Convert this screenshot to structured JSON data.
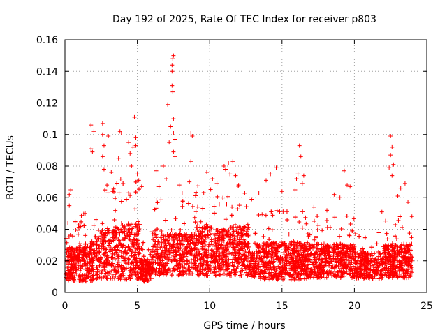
{
  "chart_data": {
    "type": "scatter",
    "title": "Day 192 of 2025, Rate Of TEC Index for receiver p803",
    "xlabel": "GPS time / hours",
    "ylabel": "ROTI / TECUs",
    "xlim": [
      0,
      25
    ],
    "ylim": [
      0,
      0.16
    ],
    "xticks": [
      0,
      5,
      10,
      15,
      20,
      25
    ],
    "yticks": [
      0,
      0.02,
      0.04,
      0.06,
      0.08,
      0.1,
      0.12,
      0.14,
      0.16
    ],
    "xtick_labels": [
      "0",
      "5",
      "10",
      "15",
      "20",
      "25"
    ],
    "ytick_labels": [
      "0",
      "0.02",
      "0.04",
      "0.06",
      "0.08",
      "0.1",
      "0.12",
      "0.14",
      "0.16"
    ],
    "grid": true,
    "marker": "+",
    "color": "#ff0000",
    "series": [
      {
        "name": "",
        "points": [
          [
            0.3,
            0.062
          ],
          [
            0.4,
            0.065
          ],
          [
            0.3,
            0.055
          ],
          [
            0.2,
            0.044
          ],
          [
            1.8,
            0.106
          ],
          [
            1.8,
            0.091
          ],
          [
            1.9,
            0.089
          ],
          [
            2.0,
            0.102
          ],
          [
            2.6,
            0.107
          ],
          [
            2.6,
            0.1
          ],
          [
            2.7,
            0.093
          ],
          [
            2.6,
            0.086
          ],
          [
            2.7,
            0.078
          ],
          [
            3.0,
            0.099
          ],
          [
            3.2,
            0.076
          ],
          [
            2.9,
            0.068
          ],
          [
            3.3,
            0.064
          ],
          [
            3.8,
            0.102
          ],
          [
            3.9,
            0.101
          ],
          [
            3.7,
            0.085
          ],
          [
            4.4,
            0.095
          ],
          [
            4.5,
            0.088
          ],
          [
            4.6,
            0.08
          ],
          [
            4.7,
            0.092
          ],
          [
            4.8,
            0.111
          ],
          [
            4.9,
            0.098
          ],
          [
            4.9,
            0.093
          ],
          [
            5.0,
            0.075
          ],
          [
            5.3,
            0.067
          ],
          [
            5.1,
            0.071
          ],
          [
            6.3,
            0.077
          ],
          [
            6.5,
            0.067
          ],
          [
            6.8,
            0.08
          ],
          [
            7.0,
            0.072
          ],
          [
            7.2,
            0.095
          ],
          [
            7.3,
            0.105
          ],
          [
            7.1,
            0.119
          ],
          [
            7.4,
            0.131
          ],
          [
            7.4,
            0.14
          ],
          [
            7.4,
            0.144
          ],
          [
            7.45,
            0.148
          ],
          [
            7.5,
            0.15
          ],
          [
            7.45,
            0.127
          ],
          [
            7.5,
            0.11
          ],
          [
            7.5,
            0.101
          ],
          [
            7.6,
            0.097
          ],
          [
            7.5,
            0.089
          ],
          [
            7.6,
            0.086
          ],
          [
            7.9,
            0.068
          ],
          [
            8.1,
            0.063
          ],
          [
            8.7,
            0.101
          ],
          [
            8.8,
            0.099
          ],
          [
            8.7,
            0.083
          ],
          [
            8.6,
            0.07
          ],
          [
            9.8,
            0.076
          ],
          [
            10.2,
            0.072
          ],
          [
            10.5,
            0.069
          ],
          [
            11.0,
            0.08
          ],
          [
            11.1,
            0.078
          ],
          [
            11.3,
            0.082
          ],
          [
            11.4,
            0.075
          ],
          [
            11.6,
            0.083
          ],
          [
            11.8,
            0.074
          ],
          [
            12.0,
            0.068
          ],
          [
            12.9,
            0.059
          ],
          [
            13.4,
            0.063
          ],
          [
            13.9,
            0.071
          ],
          [
            14.2,
            0.075
          ],
          [
            14.6,
            0.079
          ],
          [
            15.0,
            0.064
          ],
          [
            15.9,
            0.065
          ],
          [
            16.0,
            0.072
          ],
          [
            16.1,
            0.075
          ],
          [
            16.2,
            0.093
          ],
          [
            16.3,
            0.086
          ],
          [
            16.4,
            0.069
          ],
          [
            16.5,
            0.074
          ],
          [
            17.2,
            0.054
          ],
          [
            18.1,
            0.052
          ],
          [
            18.6,
            0.062
          ],
          [
            19.0,
            0.06
          ],
          [
            19.3,
            0.077
          ],
          [
            19.5,
            0.068
          ],
          [
            19.7,
            0.067
          ],
          [
            21.9,
            0.051
          ],
          [
            22.5,
            0.099
          ],
          [
            22.6,
            0.092
          ],
          [
            22.5,
            0.087
          ],
          [
            22.4,
            0.079
          ],
          [
            22.6,
            0.074
          ],
          [
            22.7,
            0.081
          ],
          [
            23.0,
            0.061
          ],
          [
            23.2,
            0.066
          ],
          [
            23.5,
            0.069
          ],
          [
            23.7,
            0.057
          ]
        ]
      }
    ]
  }
}
